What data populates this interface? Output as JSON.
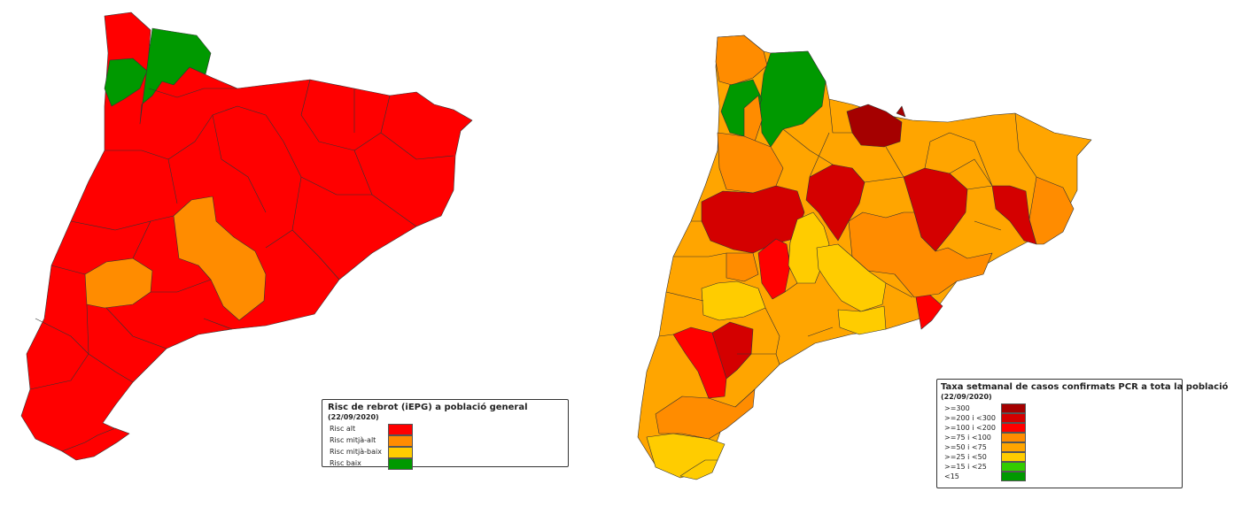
{
  "maps": [
    {
      "name": "risc-de-rebrot-map",
      "legend": {
        "title": "Risc de rebrot (iEPG) a població general",
        "date": "(22/09/2020)",
        "items": [
          {
            "label": "Risc alt",
            "color": "#ff0000"
          },
          {
            "label": "Risc mitjà-alt",
            "color": "#ff8c00"
          },
          {
            "label": "Risc mitjà-baix",
            "color": "#ffcc00"
          },
          {
            "label": "Risc baix",
            "color": "#009900"
          }
        ]
      }
    },
    {
      "name": "taxa-setmanal-map",
      "legend": {
        "title": "Taxa setmanal de casos confirmats PCR a tota la població",
        "date": "(22/09/2020)",
        "items": [
          {
            "label": ">=300",
            "color": "#a50000"
          },
          {
            "label": ">=200 i <300",
            "color": "#d40000"
          },
          {
            "label": ">=100 i <200",
            "color": "#ff0000"
          },
          {
            "label": ">=75 i <100",
            "color": "#ff8c00"
          },
          {
            "label": ">=50 i <75",
            "color": "#ffa500"
          },
          {
            "label": ">=25 i <50",
            "color": "#ffcc00"
          },
          {
            "label": ">=15 i <25",
            "color": "#33cc00"
          },
          {
            "label": "<15",
            "color": "#009900"
          }
        ]
      }
    }
  ]
}
